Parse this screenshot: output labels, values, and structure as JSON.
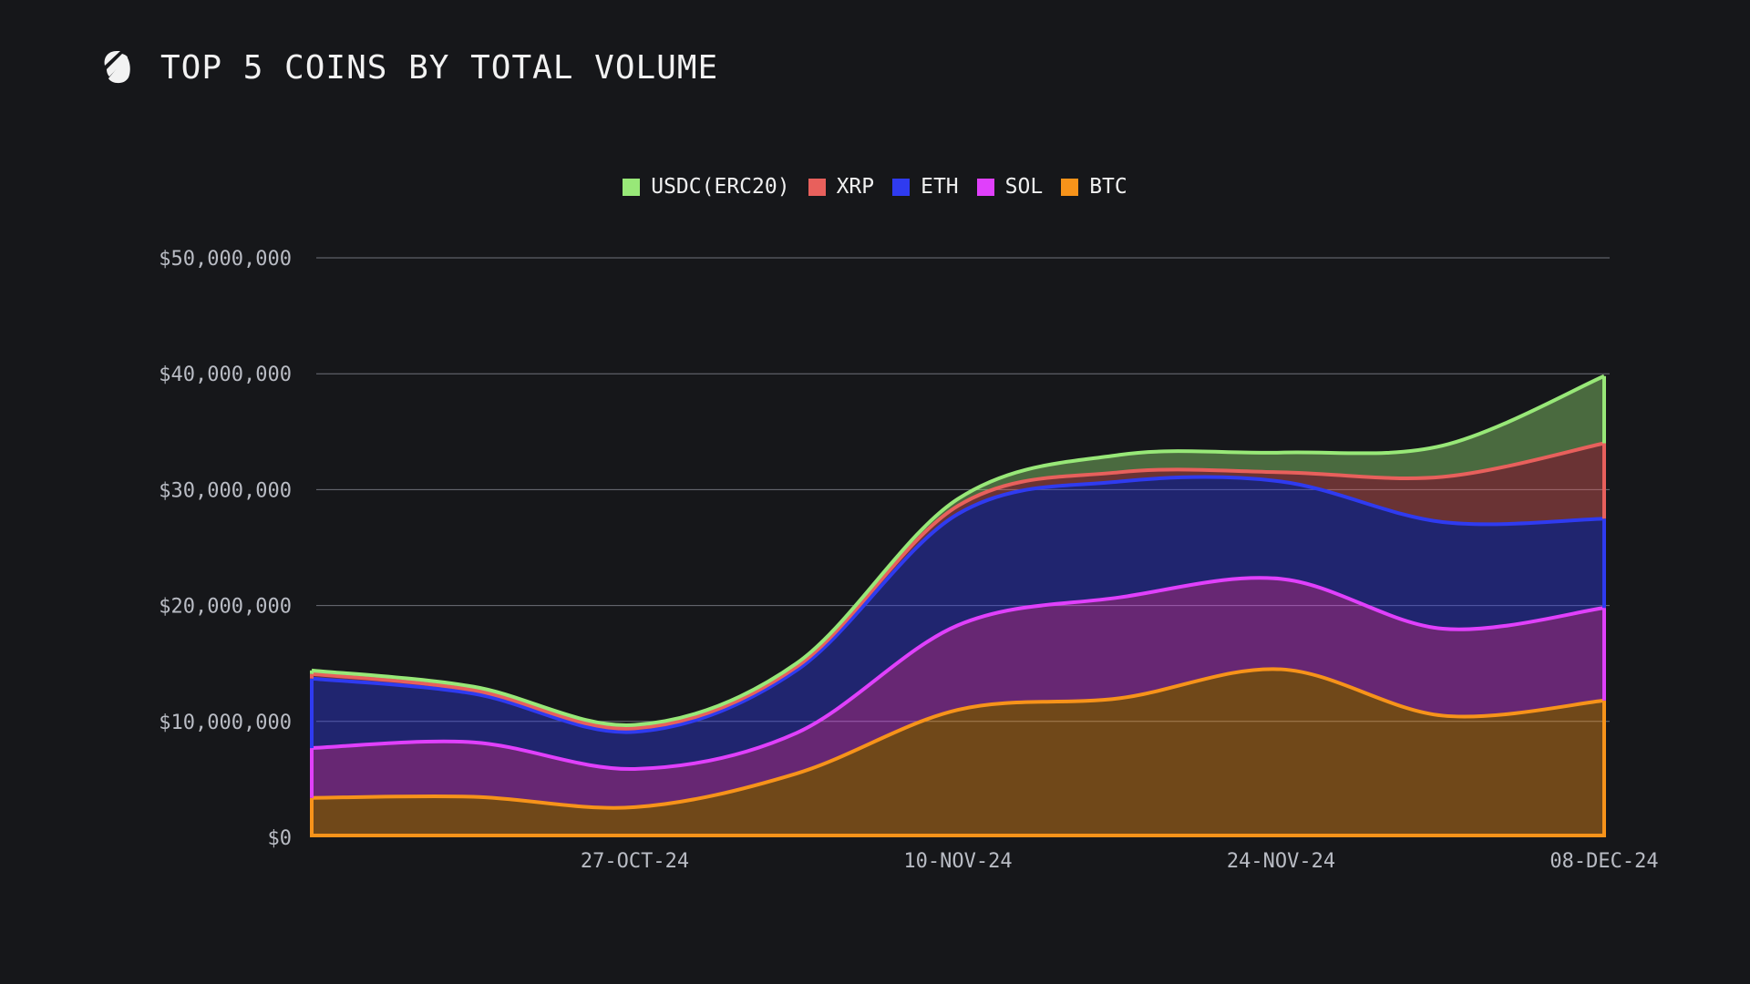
{
  "header": {
    "title": "TOP 5 COINS BY TOTAL VOLUME",
    "logo_icon": "slash-circle-logo"
  },
  "colors": {
    "background": "#16171a",
    "grid": "#6e7079",
    "axis_text": "#b9bcc4"
  },
  "chart_data": {
    "type": "area",
    "stacked": true,
    "title": "TOP 5 COINS BY TOTAL VOLUME",
    "x": [
      "2024-10-13",
      "2024-10-20",
      "2024-10-27",
      "2024-11-03",
      "2024-11-10",
      "2024-11-17",
      "2024-11-24",
      "2024-12-01",
      "2024-12-08"
    ],
    "x_tick_labels": [
      "27-OCT-24",
      "10-NOV-24",
      "24-NOV-24",
      "08-DEC-24"
    ],
    "y_tick_labels": [
      "$0",
      "$10,000,000",
      "$20,000,000",
      "$30,000,000",
      "$40,000,000",
      "$50,000,000"
    ],
    "ylim": [
      0,
      50000000
    ],
    "grid": true,
    "legend_position": "top-center",
    "series": [
      {
        "name": "BTC",
        "color": "#f7931a",
        "values": [
          3400000,
          3500000,
          2600000,
          5500000,
          11000000,
          12000000,
          14500000,
          10500000,
          11800000
        ]
      },
      {
        "name": "SOL",
        "color": "#e040fb",
        "values": [
          4300000,
          4700000,
          3300000,
          3500000,
          7300000,
          8700000,
          7800000,
          7500000,
          8000000
        ]
      },
      {
        "name": "ETH",
        "color": "#2f3bf0",
        "values": [
          6000000,
          4200000,
          3200000,
          5400000,
          9600000,
          10000000,
          8400000,
          9200000,
          7700000
        ]
      },
      {
        "name": "XRP",
        "color": "#e8605c",
        "values": [
          400000,
          300000,
          300000,
          300000,
          700000,
          800000,
          800000,
          3900000,
          6500000
        ]
      },
      {
        "name": "USDC(ERC20)",
        "color": "#98e878",
        "values": [
          300000,
          300000,
          300000,
          300000,
          600000,
          1500000,
          1700000,
          2700000,
          5800000
        ]
      }
    ],
    "legend_order": [
      "USDC(ERC20)",
      "XRP",
      "ETH",
      "SOL",
      "BTC"
    ]
  }
}
